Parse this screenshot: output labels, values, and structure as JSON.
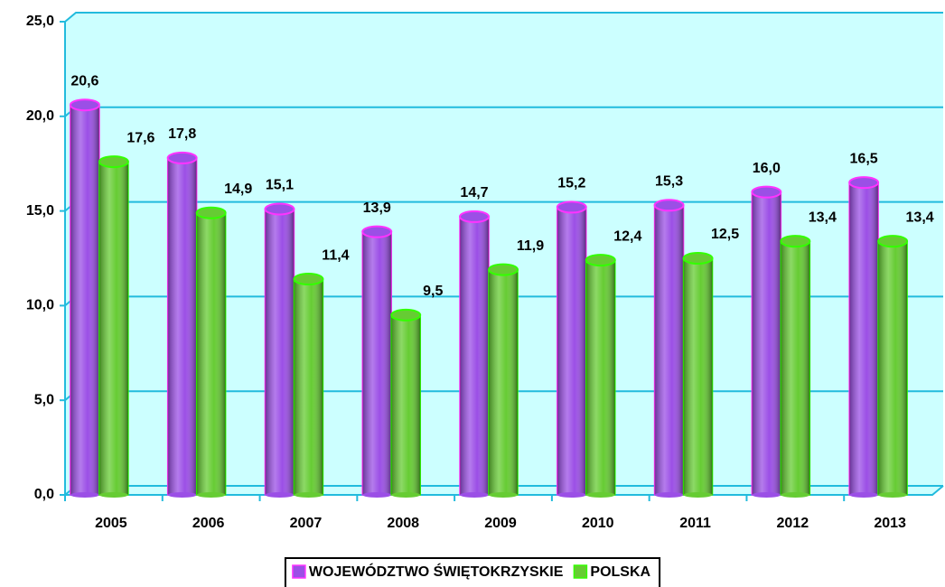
{
  "chart_data": {
    "type": "bar",
    "categories": [
      "2005",
      "2006",
      "2007",
      "2008",
      "2009",
      "2010",
      "2011",
      "2012",
      "2013"
    ],
    "series": [
      {
        "name": "WOJEWÓDZTWO ŚWIĘTOKRZYSKIE",
        "color": "#9b4fe6",
        "values": [
          20.6,
          17.8,
          15.1,
          13.9,
          14.7,
          15.2,
          15.3,
          16.0,
          16.5
        ],
        "value_labels": [
          "20,6",
          "17,8",
          "15,1",
          "13,9",
          "14,7",
          "15,2",
          "15,3",
          "16,0",
          "16,5"
        ]
      },
      {
        "name": "POLSKA",
        "color": "#66cc33",
        "values": [
          17.6,
          14.9,
          11.4,
          9.5,
          11.9,
          12.4,
          12.5,
          13.4,
          13.4
        ],
        "value_labels": [
          "17,6",
          "14,9",
          "11,4",
          "9,5",
          "11,9",
          "12,4",
          "12,5",
          "13,4",
          "13,4"
        ]
      }
    ],
    "ylim": [
      0,
      25
    ],
    "yticks": [
      {
        "value": 0,
        "label": "0,0"
      },
      {
        "value": 5,
        "label": "5,0"
      },
      {
        "value": 10,
        "label": "10,0"
      },
      {
        "value": 15,
        "label": "15,0"
      },
      {
        "value": 20,
        "label": "20,0"
      },
      {
        "value": 25,
        "label": "25,0"
      }
    ],
    "grid": true,
    "legend": "bottom"
  }
}
